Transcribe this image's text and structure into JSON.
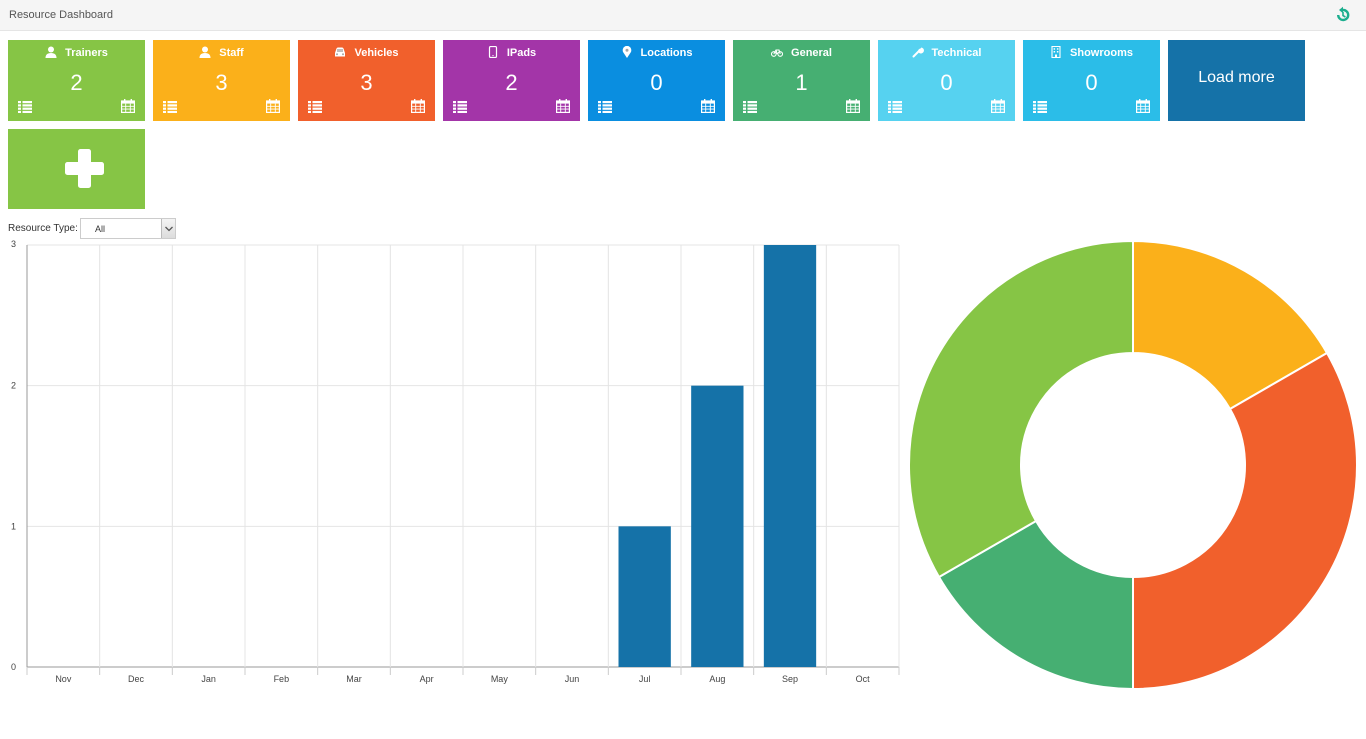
{
  "header": {
    "title": "Resource Dashboard"
  },
  "tiles": [
    {
      "label": "Trainers",
      "count": "2",
      "color": "#86c545",
      "icon": "user-icon"
    },
    {
      "label": "Staff",
      "count": "3",
      "color": "#fbb01a",
      "icon": "user-icon"
    },
    {
      "label": "Vehicles",
      "count": "3",
      "color": "#f1602c",
      "icon": "car-icon"
    },
    {
      "label": "IPads",
      "count": "2",
      "color": "#a335a8",
      "icon": "tablet-icon"
    },
    {
      "label": "Locations",
      "count": "0",
      "color": "#0a8ee0",
      "icon": "map-marker-icon"
    },
    {
      "label": "General",
      "count": "1",
      "color": "#46af72",
      "icon": "bicycle-icon"
    },
    {
      "label": "Technical",
      "count": "0",
      "color": "#56d2f0",
      "icon": "wrench-icon"
    },
    {
      "label": "Showrooms",
      "count": "0",
      "color": "#2bbde8",
      "icon": "building-icon"
    }
  ],
  "load_more": {
    "label": "Load more"
  },
  "filter": {
    "label": "Resource Type:",
    "value": "All"
  },
  "chart_data": [
    {
      "type": "bar",
      "categories": [
        "Nov",
        "Dec",
        "Jan",
        "Feb",
        "Mar",
        "Apr",
        "May",
        "Jun",
        "Jul",
        "Aug",
        "Sep",
        "Oct"
      ],
      "values": [
        0,
        0,
        0,
        0,
        0,
        0,
        0,
        0,
        1,
        2,
        3,
        0
      ],
      "ylim": [
        0,
        3
      ],
      "yticks": [
        0,
        1,
        2,
        3
      ],
      "color": "#1572a8",
      "grid": true
    },
    {
      "type": "pie",
      "donut": true,
      "slices": [
        {
          "value": 1,
          "color": "#fbb01a"
        },
        {
          "value": 2,
          "color": "#f1602c"
        },
        {
          "value": 1,
          "color": "#46af72"
        },
        {
          "value": 2,
          "color": "#86c545"
        }
      ]
    }
  ]
}
